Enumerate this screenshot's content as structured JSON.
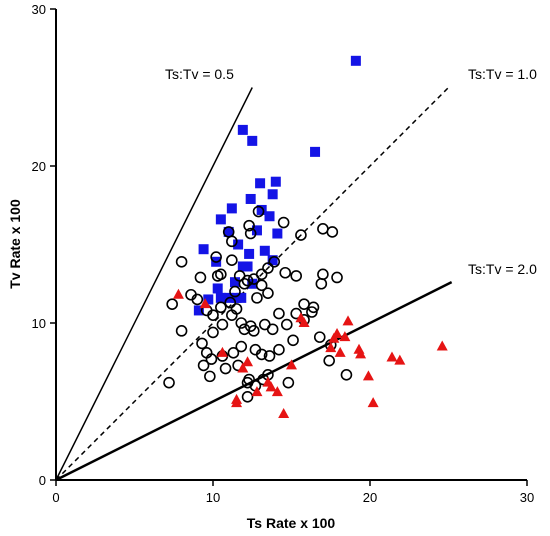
{
  "chart_data": {
    "type": "scatter",
    "title": "",
    "xlabel": "Ts Rate x 100",
    "ylabel": "Tv Rate x 100",
    "xlim": [
      0,
      30
    ],
    "ylim": [
      0,
      30
    ],
    "xticks": [
      0,
      10,
      20,
      30
    ],
    "yticks": [
      0,
      10,
      20,
      30
    ],
    "grid": false,
    "reference_lines": [
      {
        "label": "Ts:Tv = 0.5",
        "ratio": 0.5,
        "style": "solid-thin",
        "x_end": 12.5
      },
      {
        "label": "Ts:Tv = 1.0",
        "ratio": 1.0,
        "style": "dashed",
        "x_end": 25
      },
      {
        "label": "Ts:Tv = 2.0",
        "ratio": 2.0,
        "style": "solid-thick",
        "x_end": 25.2
      }
    ],
    "series": [
      {
        "marker": "square",
        "color": "#1414e6",
        "points": [
          [
            19.1,
            26.7
          ],
          [
            11.9,
            22.3
          ],
          [
            12.5,
            21.6
          ],
          [
            16.5,
            20.9
          ],
          [
            13.0,
            18.9
          ],
          [
            14.0,
            19.0
          ],
          [
            13.8,
            18.2
          ],
          [
            12.4,
            17.9
          ],
          [
            11.2,
            17.3
          ],
          [
            10.5,
            16.6
          ],
          [
            13.1,
            17.2
          ],
          [
            13.6,
            16.8
          ],
          [
            11.0,
            15.8
          ],
          [
            12.8,
            15.9
          ],
          [
            14.1,
            15.7
          ],
          [
            9.4,
            14.7
          ],
          [
            11.6,
            15.0
          ],
          [
            13.3,
            14.6
          ],
          [
            12.3,
            14.4
          ],
          [
            13.8,
            14.0
          ],
          [
            10.2,
            13.9
          ],
          [
            11.9,
            13.6
          ],
          [
            12.2,
            13.6
          ],
          [
            11.4,
            12.6
          ],
          [
            12.5,
            12.5
          ],
          [
            10.3,
            12.2
          ],
          [
            9.7,
            11.5
          ],
          [
            10.5,
            11.6
          ],
          [
            11.0,
            11.6
          ],
          [
            11.5,
            11.6
          ],
          [
            9.1,
            10.8
          ],
          [
            11.8,
            11.6
          ]
        ]
      },
      {
        "marker": "circle-open",
        "color": "#000000",
        "points": [
          [
            8.0,
            13.9
          ],
          [
            9.2,
            12.9
          ],
          [
            10.3,
            13.0
          ],
          [
            10.2,
            14.2
          ],
          [
            11.2,
            14.0
          ],
          [
            11.0,
            15.8
          ],
          [
            12.4,
            15.7
          ],
          [
            12.9,
            17.1
          ],
          [
            14.5,
            16.4
          ],
          [
            15.6,
            15.6
          ],
          [
            17.0,
            16.0
          ],
          [
            17.6,
            15.8
          ],
          [
            12.3,
            16.2
          ],
          [
            11.2,
            15.2
          ],
          [
            10.5,
            13.1
          ],
          [
            11.7,
            13.0
          ],
          [
            12.2,
            12.7
          ],
          [
            12.6,
            12.8
          ],
          [
            13.1,
            13.1
          ],
          [
            13.5,
            13.5
          ],
          [
            13.9,
            13.9
          ],
          [
            14.6,
            13.2
          ],
          [
            15.3,
            13.0
          ],
          [
            17.0,
            13.1
          ],
          [
            17.9,
            12.9
          ],
          [
            16.9,
            12.5
          ],
          [
            13.5,
            11.9
          ],
          [
            13.1,
            12.4
          ],
          [
            12.0,
            12.5
          ],
          [
            11.4,
            12.0
          ],
          [
            11.1,
            11.3
          ],
          [
            11.5,
            10.9
          ],
          [
            12.8,
            11.6
          ],
          [
            7.4,
            11.2
          ],
          [
            8.6,
            11.8
          ],
          [
            9.0,
            11.5
          ],
          [
            9.6,
            10.8
          ],
          [
            10.0,
            10.5
          ],
          [
            10.5,
            11.0
          ],
          [
            11.2,
            10.5
          ],
          [
            11.8,
            10.0
          ],
          [
            12.4,
            9.8
          ],
          [
            13.3,
            9.9
          ],
          [
            14.2,
            10.6
          ],
          [
            15.3,
            10.6
          ],
          [
            15.8,
            11.2
          ],
          [
            16.4,
            11.0
          ],
          [
            16.3,
            10.7
          ],
          [
            15.8,
            10.2
          ],
          [
            14.7,
            9.9
          ],
          [
            13.8,
            9.6
          ],
          [
            12.6,
            9.5
          ],
          [
            12.0,
            9.6
          ],
          [
            10.6,
            9.9
          ],
          [
            10.0,
            9.4
          ],
          [
            9.3,
            8.7
          ],
          [
            9.6,
            8.1
          ],
          [
            9.9,
            7.7
          ],
          [
            10.6,
            7.9
          ],
          [
            11.3,
            8.1
          ],
          [
            11.8,
            8.5
          ],
          [
            12.7,
            8.3
          ],
          [
            13.1,
            8.0
          ],
          [
            13.6,
            7.9
          ],
          [
            14.2,
            8.3
          ],
          [
            15.1,
            8.9
          ],
          [
            16.8,
            9.1
          ],
          [
            17.5,
            8.6
          ],
          [
            17.4,
            7.6
          ],
          [
            18.5,
            6.7
          ],
          [
            7.2,
            6.2
          ],
          [
            8.0,
            9.5
          ],
          [
            9.4,
            7.3
          ],
          [
            9.8,
            6.6
          ],
          [
            10.8,
            7.1
          ],
          [
            11.6,
            7.3
          ],
          [
            12.3,
            6.4
          ],
          [
            12.7,
            6.0
          ],
          [
            13.2,
            6.4
          ],
          [
            13.5,
            6.7
          ],
          [
            14.8,
            6.2
          ],
          [
            12.2,
            5.3
          ],
          [
            12.2,
            6.2
          ]
        ]
      },
      {
        "marker": "triangle",
        "color": "#e61414",
        "points": [
          [
            7.8,
            11.8
          ],
          [
            9.5,
            11.2
          ],
          [
            10.6,
            8.1
          ],
          [
            11.9,
            7.1
          ],
          [
            12.2,
            7.5
          ],
          [
            11.5,
            5.1
          ],
          [
            11.5,
            4.9
          ],
          [
            12.8,
            5.6
          ],
          [
            13.5,
            6.2
          ],
          [
            13.7,
            5.9
          ],
          [
            14.1,
            5.6
          ],
          [
            14.5,
            4.2
          ],
          [
            15.0,
            7.3
          ],
          [
            15.6,
            10.3
          ],
          [
            15.8,
            10.0
          ],
          [
            17.5,
            8.4
          ],
          [
            17.7,
            9.0
          ],
          [
            17.9,
            9.3
          ],
          [
            18.4,
            9.1
          ],
          [
            18.1,
            8.1
          ],
          [
            18.6,
            10.1
          ],
          [
            19.3,
            8.3
          ],
          [
            19.4,
            8.0
          ],
          [
            19.9,
            6.6
          ],
          [
            20.2,
            4.9
          ],
          [
            21.4,
            7.8
          ],
          [
            21.9,
            7.6
          ],
          [
            24.6,
            8.5
          ]
        ]
      }
    ]
  }
}
